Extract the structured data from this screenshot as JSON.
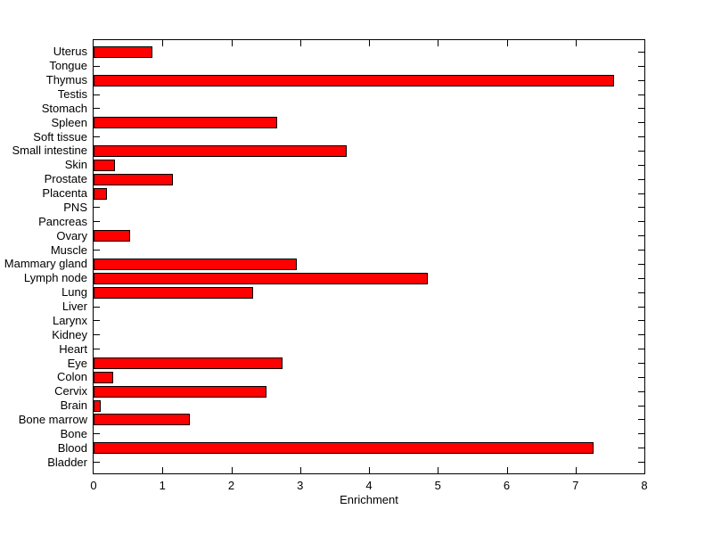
{
  "chart_data": {
    "type": "bar",
    "orientation": "horizontal",
    "order": "top-to-bottom",
    "categories": [
      "Uterus",
      "Tongue",
      "Thymus",
      "Testis",
      "Stomach",
      "Spleen",
      "Soft tissue",
      "Small intestine",
      "Skin",
      "Prostate",
      "Placenta",
      "PNS",
      "Pancreas",
      "Ovary",
      "Muscle",
      "Mammary gland",
      "Lymph node",
      "Lung",
      "Liver",
      "Larynx",
      "Kidney",
      "Heart",
      "Eye",
      "Colon",
      "Cervix",
      "Brain",
      "Bone marrow",
      "Bone",
      "Blood",
      "Bladder"
    ],
    "values": [
      0.85,
      0,
      7.56,
      0,
      0,
      2.67,
      0,
      3.68,
      0.31,
      1.15,
      0.2,
      0,
      0,
      0.53,
      0,
      2.95,
      4.85,
      2.32,
      0,
      0,
      0,
      0,
      2.75,
      0.28,
      2.51,
      0.11,
      1.4,
      0,
      7.26,
      0
    ],
    "xlabel": "Enrichment",
    "xlim": [
      0,
      8
    ],
    "xticks": [
      0,
      1,
      2,
      3,
      4,
      5,
      6,
      7,
      8
    ],
    "bar_color": "#FF0000",
    "bar_border_color": "#000000",
    "axis_color": "#000000",
    "background_color": "#FFFFFF",
    "grid": false,
    "legend": false
  }
}
